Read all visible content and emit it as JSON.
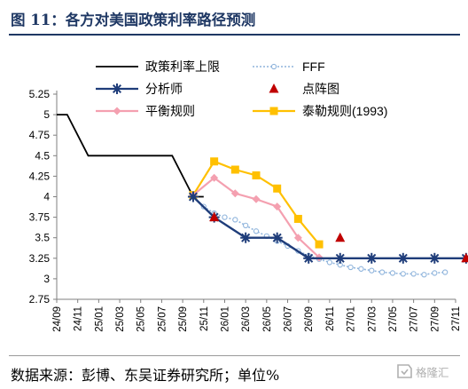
{
  "header": {
    "title": "图 11：各方对美国政策利率路径预测"
  },
  "footer": {
    "source": "数据来源：彭博、东吴证券研究所；单位%",
    "watermark": "格隆汇"
  },
  "chart_data": {
    "type": "line",
    "title": "",
    "xlabel": "",
    "ylabel": "",
    "ylim": [
      2.75,
      5.25
    ],
    "yticks": [
      2.75,
      3,
      3.25,
      3.5,
      3.75,
      4,
      4.25,
      4.5,
      4.75,
      5,
      5.25
    ],
    "yticklabels": [
      "2.75",
      "3",
      "3.25",
      "3.5",
      "3.75",
      "4",
      "4.25",
      "4.5",
      "4.75",
      "5",
      "5.25"
    ],
    "x_tick_labels": [
      "24/09",
      "24/11",
      "25/01",
      "25/03",
      "25/05",
      "25/07",
      "25/09",
      "25/11",
      "26/01",
      "26/03",
      "26/05",
      "26/07",
      "26/09",
      "26/11",
      "27/01",
      "27/03",
      "27/05",
      "27/07",
      "27/09",
      "27/11"
    ],
    "grid": false,
    "legend_placement": "top",
    "series": [
      {
        "name": "政策利率上限",
        "style": "line",
        "color": "#000000",
        "x": [
          "24/09",
          "24/10",
          "24/11",
          "24/12",
          "25/01",
          "25/02",
          "25/03",
          "25/04",
          "25/05",
          "25/06",
          "25/07",
          "25/08",
          "25/09",
          "25/10",
          "25/11"
        ],
        "y": [
          5,
          5,
          4.75,
          4.5,
          4.5,
          4.5,
          4.5,
          4.5,
          4.5,
          4.5,
          4.5,
          4.5,
          4.25,
          4,
          4
        ]
      },
      {
        "name": "FFF",
        "style": "dotted-circles",
        "color": "#8fb4dc",
        "x": [
          "25/10",
          "25/11",
          "25/12",
          "26/01",
          "26/02",
          "26/03",
          "26/04",
          "26/05",
          "26/06",
          "26/07",
          "26/08",
          "26/09",
          "26/10",
          "26/11",
          "26/12",
          "27/01",
          "27/02",
          "27/03",
          "27/04",
          "27/05",
          "27/06",
          "27/07",
          "27/08",
          "27/09",
          "27/10"
        ],
        "y": [
          4,
          3.88,
          3.8,
          3.75,
          3.72,
          3.65,
          3.58,
          3.52,
          3.46,
          3.4,
          3.34,
          3.28,
          3.24,
          3.2,
          3.17,
          3.14,
          3.12,
          3.1,
          3.08,
          3.07,
          3.06,
          3.06,
          3.05,
          3.07,
          3.08
        ]
      },
      {
        "name": "分析师",
        "style": "line-stars",
        "color": "#1f3d7a",
        "x": [
          "25/10",
          "25/12",
          "26/03",
          "26/06",
          "26/09",
          "26/12",
          "27/03",
          "27/06",
          "27/09",
          "27/12"
        ],
        "y": [
          4,
          3.75,
          3.5,
          3.5,
          3.25,
          3.25,
          3.25,
          3.25,
          3.25,
          3.25
        ]
      },
      {
        "name": "点阵图",
        "style": "triangles",
        "color": "#c00000",
        "x": [
          "25/12",
          "26/12",
          "27/12"
        ],
        "y": [
          3.75,
          3.5,
          3.25
        ]
      },
      {
        "name": "平衡规则",
        "style": "line-diamonds",
        "color": "#f4a0b0",
        "x": [
          "25/10",
          "25/12",
          "26/02",
          "26/04",
          "26/06",
          "26/08",
          "26/10"
        ],
        "y": [
          4.02,
          4.23,
          4.04,
          3.97,
          3.88,
          3.5,
          3.26
        ]
      },
      {
        "name": "泰勒规则(1993)",
        "style": "line-squares",
        "color": "#ffc000",
        "x": [
          "25/10",
          "25/12",
          "26/02",
          "26/04",
          "26/06",
          "26/08",
          "26/10"
        ],
        "y": [
          4.02,
          4.43,
          4.33,
          4.26,
          4.1,
          3.73,
          3.42
        ]
      }
    ]
  }
}
